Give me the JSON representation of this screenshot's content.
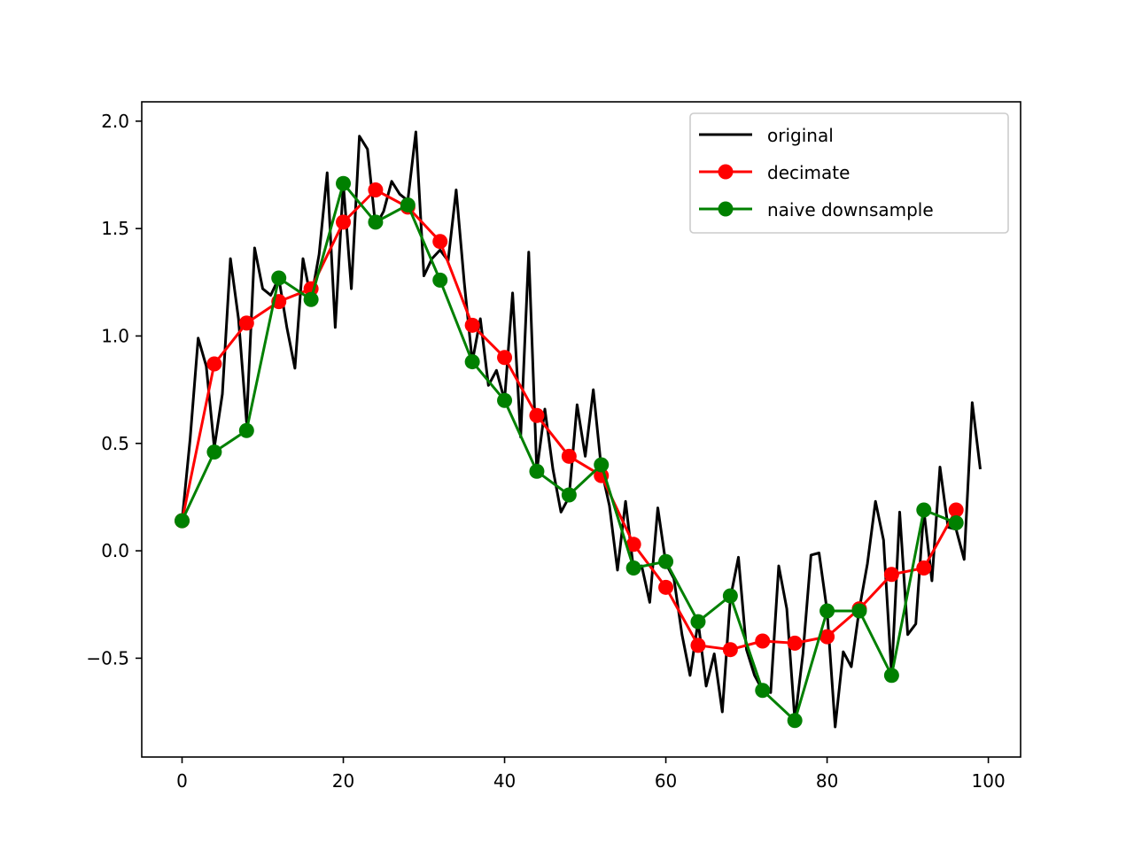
{
  "chart_data": {
    "type": "line",
    "title": "",
    "xlabel": "",
    "ylabel": "",
    "xlim": [
      -5,
      104
    ],
    "ylim": [
      -0.96,
      2.09
    ],
    "xticks": [
      0,
      20,
      40,
      60,
      80,
      100
    ],
    "xtick_labels": [
      "0",
      "20",
      "40",
      "60",
      "80",
      "100"
    ],
    "yticks": [
      -0.5,
      0.0,
      0.5,
      1.0,
      1.5,
      2.0
    ],
    "ytick_labels": [
      "−0.5",
      "0.0",
      "0.5",
      "1.0",
      "1.5",
      "2.0"
    ],
    "grid": false,
    "legend": "upper right",
    "series": [
      {
        "name": "original",
        "color": "#000000",
        "marker": "none",
        "x": [
          0,
          1,
          2,
          3,
          4,
          5,
          6,
          7,
          8,
          9,
          10,
          11,
          12,
          13,
          14,
          15,
          16,
          17,
          18,
          19,
          20,
          21,
          22,
          23,
          24,
          25,
          26,
          27,
          28,
          29,
          30,
          31,
          32,
          33,
          34,
          35,
          36,
          37,
          38,
          39,
          40,
          41,
          42,
          43,
          44,
          45,
          46,
          47,
          48,
          49,
          50,
          51,
          52,
          53,
          54,
          55,
          56,
          57,
          58,
          59,
          60,
          61,
          62,
          63,
          64,
          65,
          66,
          67,
          68,
          69,
          70,
          71,
          72,
          73,
          74,
          75,
          76,
          77,
          78,
          79,
          80,
          81,
          82,
          83,
          84,
          85,
          86,
          87,
          88,
          89,
          90,
          91,
          92,
          93,
          94,
          95,
          96,
          97,
          98,
          99
        ],
        "y": [
          0.14,
          0.52,
          0.99,
          0.86,
          0.48,
          0.73,
          1.36,
          1.08,
          0.6,
          1.41,
          1.22,
          1.19,
          1.27,
          1.04,
          0.85,
          1.36,
          1.17,
          1.38,
          1.76,
          1.04,
          1.71,
          1.22,
          1.93,
          1.87,
          1.51,
          1.58,
          1.72,
          1.66,
          1.63,
          1.95,
          1.28,
          1.36,
          1.4,
          1.35,
          1.68,
          1.25,
          0.88,
          1.08,
          0.77,
          0.84,
          0.7,
          1.2,
          0.53,
          1.39,
          0.37,
          0.66,
          0.38,
          0.18,
          0.25,
          0.68,
          0.44,
          0.75,
          0.38,
          0.21,
          -0.09,
          0.23,
          -0.09,
          -0.07,
          -0.24,
          0.2,
          -0.06,
          -0.13,
          -0.39,
          -0.58,
          -0.33,
          -0.63,
          -0.48,
          -0.75,
          -0.22,
          -0.03,
          -0.46,
          -0.58,
          -0.65,
          -0.66,
          -0.07,
          -0.27,
          -0.79,
          -0.48,
          -0.02,
          -0.01,
          -0.28,
          -0.82,
          -0.47,
          -0.54,
          -0.27,
          -0.06,
          0.23,
          0.05,
          -0.58,
          0.18,
          -0.39,
          -0.34,
          0.19,
          -0.14,
          0.39,
          0.11,
          0.1,
          -0.04,
          0.69,
          0.38
        ]
      },
      {
        "name": "decimate",
        "color": "#ff0000",
        "marker": "circle",
        "x": [
          0,
          4,
          8,
          12,
          16,
          20,
          24,
          28,
          32,
          36,
          40,
          44,
          48,
          52,
          56,
          60,
          64,
          68,
          72,
          76,
          80,
          84,
          88,
          92,
          96
        ],
        "y": [
          0.14,
          0.87,
          1.06,
          1.16,
          1.22,
          1.53,
          1.68,
          1.6,
          1.44,
          1.05,
          0.9,
          0.63,
          0.44,
          0.35,
          0.03,
          -0.17,
          -0.44,
          -0.46,
          -0.42,
          -0.43,
          -0.4,
          -0.27,
          -0.11,
          -0.08,
          0.19
        ]
      },
      {
        "name": "naive downsample",
        "color": "#008000",
        "marker": "circle",
        "x": [
          0,
          4,
          8,
          12,
          16,
          20,
          24,
          28,
          32,
          36,
          40,
          44,
          48,
          52,
          56,
          60,
          64,
          68,
          72,
          76,
          80,
          84,
          88,
          92,
          96
        ],
        "y": [
          0.14,
          0.46,
          0.56,
          1.27,
          1.17,
          1.71,
          1.53,
          1.61,
          1.26,
          0.88,
          0.7,
          0.37,
          0.26,
          0.4,
          -0.08,
          -0.05,
          -0.33,
          -0.21,
          -0.65,
          -0.79,
          -0.28,
          -0.28,
          -0.58,
          0.19,
          0.13
        ]
      }
    ]
  }
}
